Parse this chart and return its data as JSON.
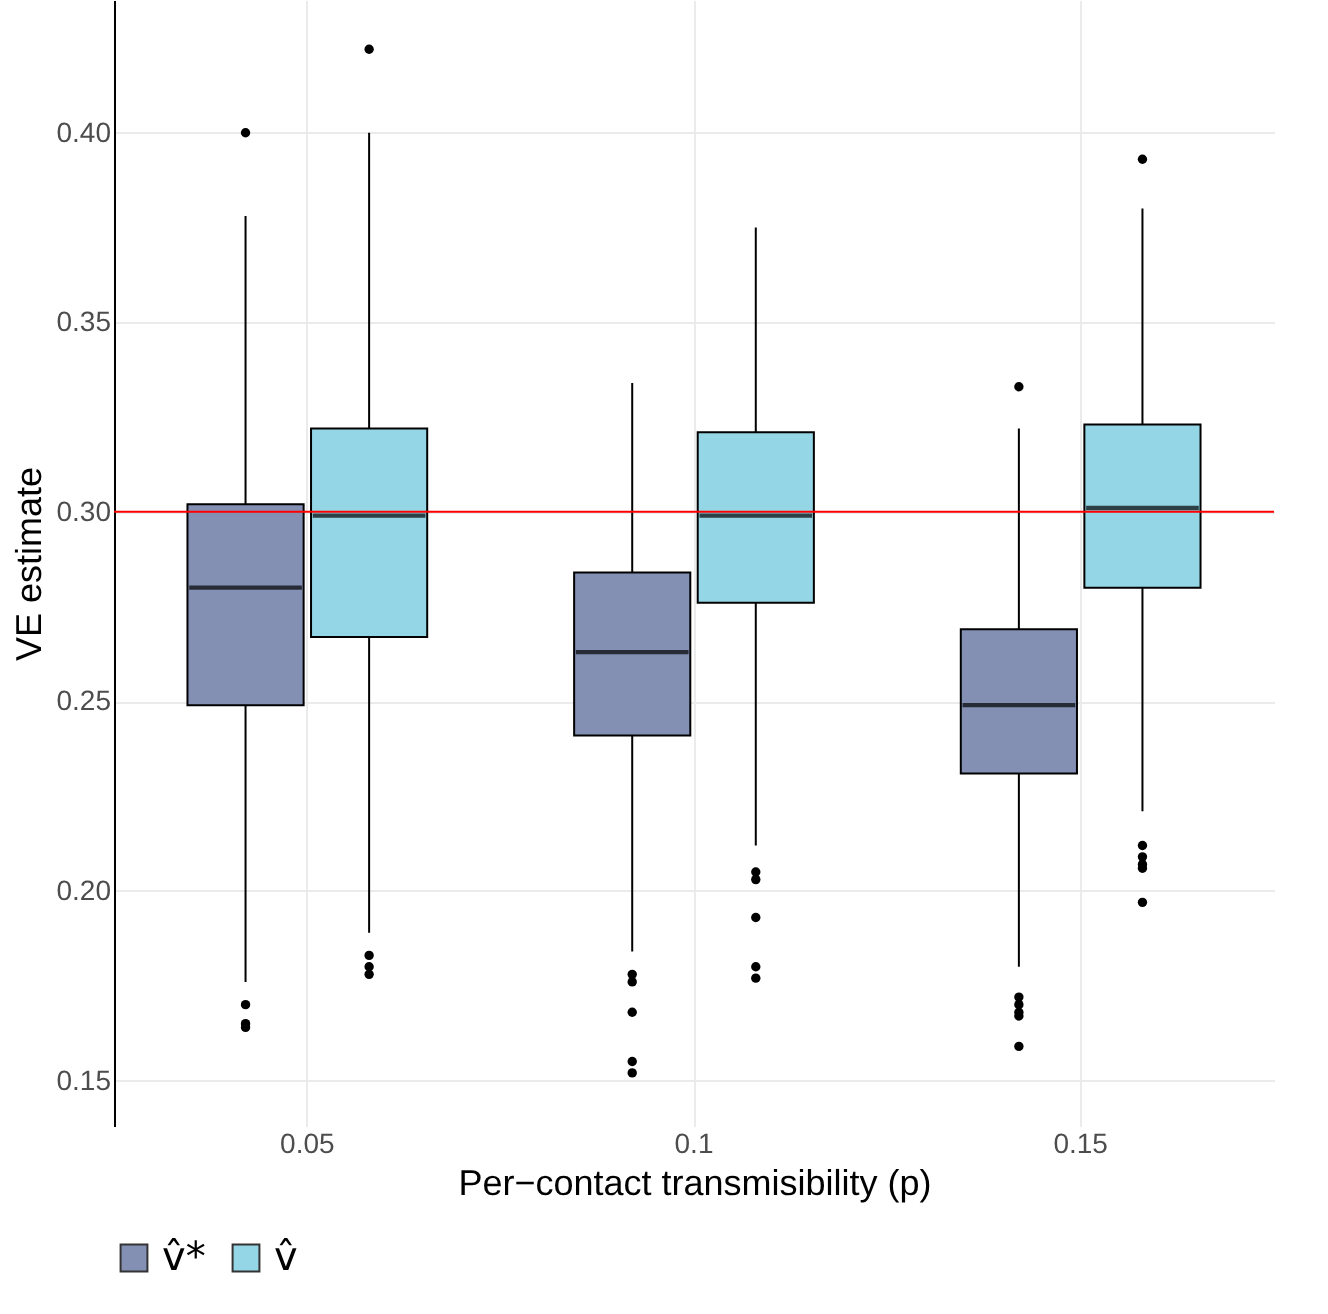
{
  "chart_data": {
    "type": "box",
    "xlabel": "Per−contact transmisibility (p)",
    "ylabel": "VE estimate",
    "categories": [
      "0.05",
      "0.1",
      "0.15"
    ],
    "ylim": [
      0.138,
      0.435
    ],
    "yticks": [
      {
        "value": 0.15,
        "label": "0.15"
      },
      {
        "value": 0.2,
        "label": "0.20"
      },
      {
        "value": 0.25,
        "label": "0.25"
      },
      {
        "value": 0.3,
        "label": "0.30"
      },
      {
        "value": 0.35,
        "label": "0.35"
      },
      {
        "value": 0.4,
        "label": "0.40"
      }
    ],
    "grid": true,
    "legend": "bottom",
    "ref_lines": [
      {
        "axis": "y",
        "value": 0.3,
        "color": "#ff0000"
      }
    ],
    "series": [
      {
        "name": "v̂*",
        "color": "#8390b4",
        "boxes": [
          {
            "low": 0.176,
            "q1": 0.249,
            "median": 0.28,
            "q3": 0.302,
            "high": 0.378,
            "outliers": [
              0.4,
              0.17,
              0.165,
              0.164
            ]
          },
          {
            "low": 0.184,
            "q1": 0.241,
            "median": 0.263,
            "q3": 0.284,
            "high": 0.334,
            "outliers": [
              0.178,
              0.176,
              0.168,
              0.155,
              0.152
            ]
          },
          {
            "low": 0.18,
            "q1": 0.231,
            "median": 0.249,
            "q3": 0.269,
            "high": 0.322,
            "outliers": [
              0.333,
              0.172,
              0.17,
              0.168,
              0.167,
              0.159
            ]
          }
        ]
      },
      {
        "name": "v̂",
        "color": "#94d6e6",
        "boxes": [
          {
            "low": 0.189,
            "q1": 0.267,
            "median": 0.299,
            "q3": 0.322,
            "high": 0.4,
            "outliers": [
              0.422,
              0.183,
              0.18,
              0.178
            ]
          },
          {
            "low": 0.212,
            "q1": 0.276,
            "median": 0.299,
            "q3": 0.321,
            "high": 0.375,
            "outliers": [
              0.205,
              0.203,
              0.193,
              0.18,
              0.177
            ]
          },
          {
            "low": 0.221,
            "q1": 0.28,
            "median": 0.301,
            "q3": 0.323,
            "high": 0.38,
            "outliers": [
              0.393,
              0.212,
              0.209,
              0.207,
              0.206,
              0.197
            ]
          }
        ]
      }
    ]
  }
}
